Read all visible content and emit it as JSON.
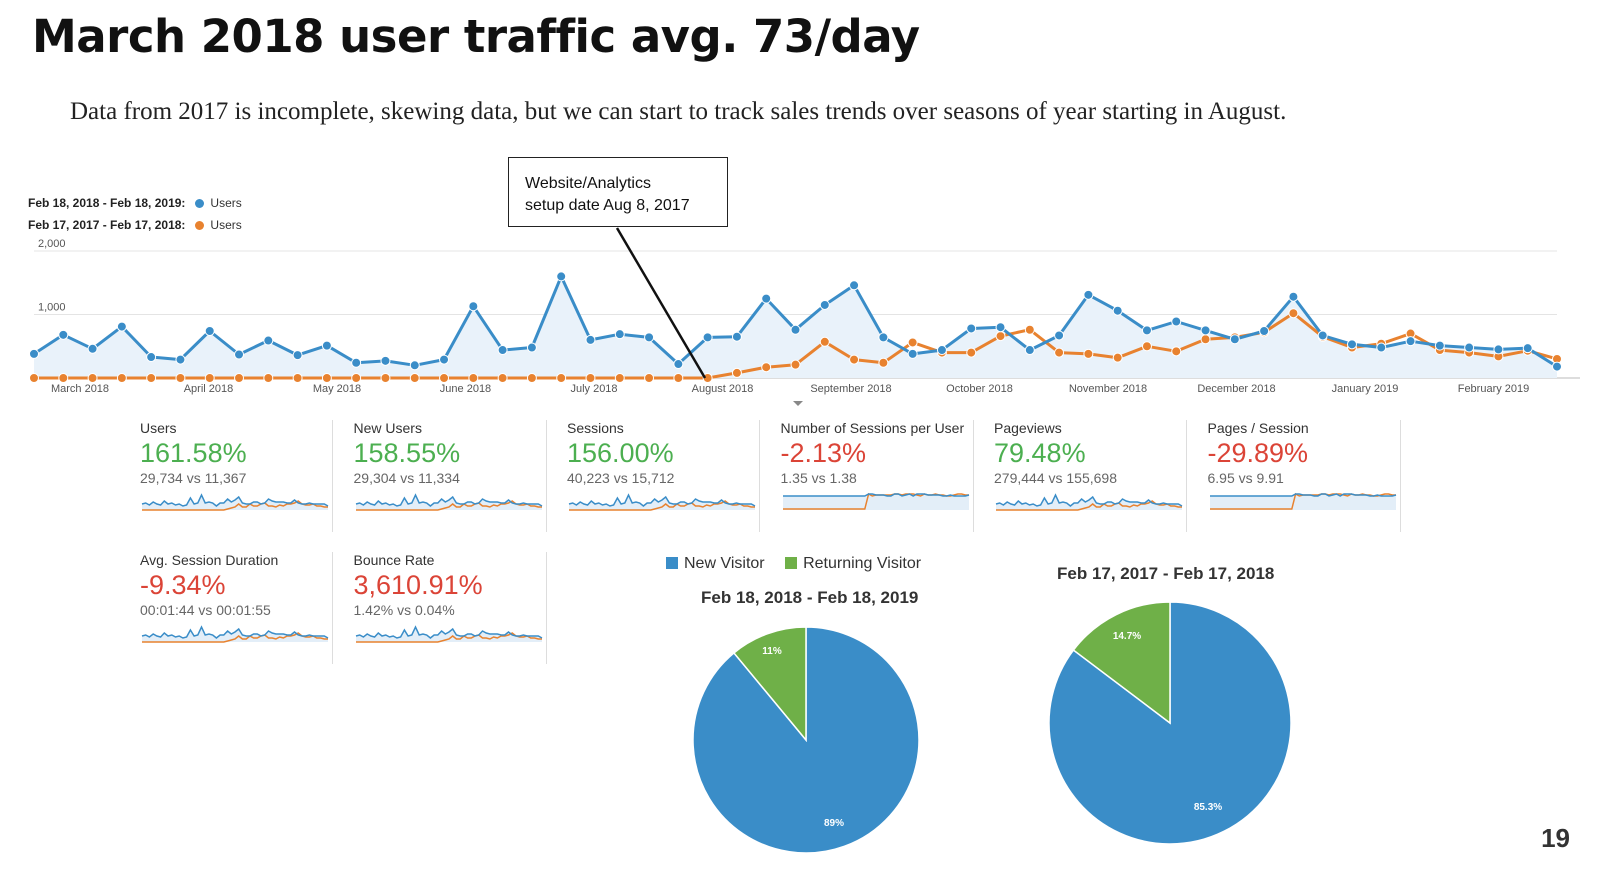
{
  "slide": {
    "title": "March 2018 user traffic avg. 73/day",
    "subtitle": "Data from 2017 is incomplete, skewing data, but we can start to track sales trends over seasons of year starting in August.",
    "callout_line1": "Website/Analytics",
    "callout_line2": "setup date Aug 8, 2017",
    "page_number": "19"
  },
  "chart_data": [
    {
      "type": "line",
      "legend_placement": "top-left",
      "grid": true,
      "ylim": [
        0,
        2000
      ],
      "y_ticks": [
        "2,000",
        "1,000"
      ],
      "x_tick_labels": [
        "March 2018",
        "April 2018",
        "May 2018",
        "June 2018",
        "July 2018",
        "August 2018",
        "September 2018",
        "October 2018",
        "November 2018",
        "December 2018",
        "January 2019",
        "February 2019"
      ],
      "series": [
        {
          "name": "Users",
          "range": "Feb 18, 2018 - Feb 18, 2019:",
          "color": "#3a8dc8",
          "values": [
            380,
            680,
            460,
            810,
            330,
            290,
            740,
            370,
            590,
            360,
            510,
            240,
            270,
            200,
            290,
            1130,
            440,
            480,
            1600,
            600,
            690,
            640,
            220,
            640,
            650,
            1250,
            760,
            1150,
            1460,
            640,
            380,
            440,
            780,
            800,
            440,
            670,
            1310,
            1060,
            750,
            890,
            750,
            610,
            740,
            1280,
            670,
            530,
            480,
            580,
            510,
            480,
            450,
            470,
            180
          ]
        },
        {
          "name": "Users",
          "range": "Feb 17, 2017 - Feb 17, 2018:",
          "color": "#e8822f",
          "values": [
            0,
            0,
            0,
            0,
            0,
            0,
            0,
            0,
            0,
            0,
            0,
            0,
            0,
            0,
            0,
            0,
            0,
            0,
            0,
            0,
            0,
            0,
            0,
            0,
            80,
            170,
            210,
            570,
            290,
            240,
            560,
            400,
            400,
            660,
            760,
            400,
            380,
            320,
            500,
            420,
            610,
            640,
            720,
            1020,
            650,
            480,
            540,
            700,
            440,
            400,
            340,
            430,
            300
          ]
        }
      ]
    },
    {
      "type": "pie",
      "title": "Feb 18, 2018 - Feb 18, 2019",
      "legend_placement": "top",
      "slices": [
        {
          "name": "New Visitor",
          "value": 89,
          "label": "89%",
          "color": "#3a8dc8"
        },
        {
          "name": "Returning Visitor",
          "value": 11,
          "label": "11%",
          "color": "#6fb048"
        }
      ]
    },
    {
      "type": "pie",
      "title": "Feb 17, 2017 - Feb 17, 2018",
      "slices": [
        {
          "name": "New Visitor",
          "value": 85.3,
          "label": "85.3%",
          "color": "#3a8dc8"
        },
        {
          "name": "Returning Visitor",
          "value": 14.7,
          "label": "14.7%",
          "color": "#6fb048"
        }
      ]
    }
  ],
  "metrics": [
    {
      "label": "Users",
      "value": "161.58%",
      "compare": "29,734 vs 11,367",
      "trend": "positive"
    },
    {
      "label": "New Users",
      "value": "158.55%",
      "compare": "29,304 vs 11,334",
      "trend": "positive"
    },
    {
      "label": "Sessions",
      "value": "156.00%",
      "compare": "40,223 vs 15,712",
      "trend": "positive"
    },
    {
      "label": "Number of Sessions per User",
      "value": "-2.13%",
      "compare": "1.35 vs 1.38",
      "trend": "negative"
    },
    {
      "label": "Pageviews",
      "value": "79.48%",
      "compare": "279,444 vs 155,698",
      "trend": "positive"
    },
    {
      "label": "Pages / Session",
      "value": "-29.89%",
      "compare": "6.95 vs 9.91",
      "trend": "negative"
    },
    {
      "label": "Avg. Session Duration",
      "value": "-9.34%",
      "compare": "00:01:44 vs 00:01:55",
      "trend": "negative"
    },
    {
      "label": "Bounce Rate",
      "value": "3,610.91%",
      "compare": "1.42% vs 0.04%",
      "trend": "negative"
    }
  ]
}
